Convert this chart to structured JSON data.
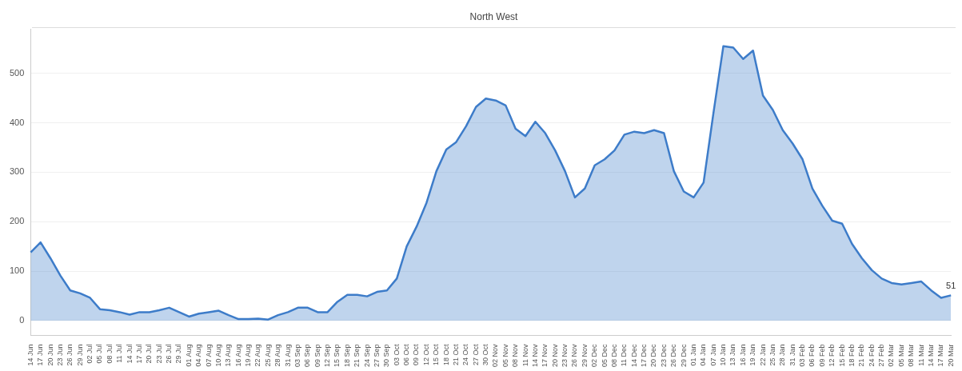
{
  "chart_data": {
    "type": "area",
    "title": "North West",
    "categories": [
      "14 Jun",
      "17 Jun",
      "20 Jun",
      "23 Jun",
      "26 Jun",
      "29 Jun",
      "02 Jul",
      "05 Jul",
      "08 Jul",
      "11 Jul",
      "14 Jul",
      "17 Jul",
      "20 Jul",
      "23 Jul",
      "26 Jul",
      "29 Jul",
      "01 Aug",
      "04 Aug",
      "07 Aug",
      "10 Aug",
      "13 Aug",
      "16 Aug",
      "19 Aug",
      "22 Aug",
      "25 Aug",
      "28 Aug",
      "31 Aug",
      "03 Sep",
      "06 Sep",
      "09 Sep",
      "12 Sep",
      "15 Sep",
      "18 Sep",
      "21 Sep",
      "24 Sep",
      "27 Sep",
      "30 Sep",
      "03 Oct",
      "06 Oct",
      "09 Oct",
      "12 Oct",
      "15 Oct",
      "18 Oct",
      "21 Oct",
      "24 Oct",
      "27 Oct",
      "30 Oct",
      "02 Nov",
      "05 Nov",
      "08 Nov",
      "11 Nov",
      "14 Nov",
      "17 Nov",
      "20 Nov",
      "23 Nov",
      "26 Nov",
      "29 Nov",
      "02 Dec",
      "05 Dec",
      "08 Dec",
      "11 Dec",
      "14 Dec",
      "17 Dec",
      "20 Dec",
      "23 Dec",
      "26 Dec",
      "29 Dec",
      "01 Jan",
      "04 Jan",
      "07 Jan",
      "10 Jan",
      "13 Jan",
      "16 Jan",
      "19 Jan",
      "22 Jan",
      "25 Jan",
      "28 Jan",
      "31 Jan",
      "03 Feb",
      "06 Feb",
      "09 Feb",
      "12 Feb",
      "15 Feb",
      "18 Feb",
      "21 Feb",
      "24 Feb",
      "27 Feb",
      "02 Mar",
      "05 Mar",
      "08 Mar",
      "11 Mar",
      "14 Mar",
      "17 Mar",
      "20 Mar"
    ],
    "series": [
      {
        "color": "#3d7cc9",
        "values": [
          138,
          158,
          126,
          91,
          61,
          55,
          46,
          23,
          21,
          17,
          12,
          17,
          17,
          21,
          26,
          17,
          8,
          14,
          17,
          20,
          11,
          3,
          3,
          4,
          2,
          11,
          17,
          26,
          26,
          17,
          17,
          38,
          52,
          52,
          49,
          58,
          61,
          85,
          150,
          190,
          238,
          302,
          346,
          361,
          393,
          432,
          449,
          445,
          435,
          388,
          373,
          402,
          379,
          344,
          302,
          249,
          267,
          314,
          326,
          344,
          376,
          382,
          379,
          385,
          379,
          302,
          261,
          249,
          279,
          420,
          555,
          552,
          529,
          546,
          455,
          426,
          385,
          358,
          326,
          267,
          232,
          202,
          196,
          155,
          126,
          102,
          85,
          76,
          73,
          76,
          79,
          61,
          46,
          51
        ],
        "value_labels": [
          null,
          null,
          null,
          null,
          null,
          null,
          null,
          null,
          null,
          null,
          null,
          null,
          null,
          null,
          null,
          null,
          null,
          null,
          null,
          null,
          null,
          null,
          null,
          null,
          null,
          null,
          null,
          null,
          null,
          null,
          null,
          null,
          null,
          null,
          null,
          null,
          null,
          null,
          null,
          null,
          null,
          null,
          null,
          null,
          null,
          null,
          null,
          null,
          null,
          null,
          null,
          null,
          null,
          null,
          null,
          null,
          null,
          null,
          null,
          null,
          null,
          null,
          null,
          null,
          null,
          null,
          null,
          null,
          null,
          null,
          null,
          null,
          null,
          null,
          null,
          null,
          null,
          null,
          null,
          null,
          null,
          null,
          null,
          null,
          null,
          null,
          null,
          null,
          null,
          null,
          null,
          null,
          null,
          "51"
        ]
      }
    ],
    "ylim": [
      -30,
      590
    ],
    "yticks": [
      0,
      100,
      200,
      300,
      400,
      500
    ],
    "grid": "y",
    "legend": false,
    "marker": "none",
    "line_style": "solid"
  }
}
